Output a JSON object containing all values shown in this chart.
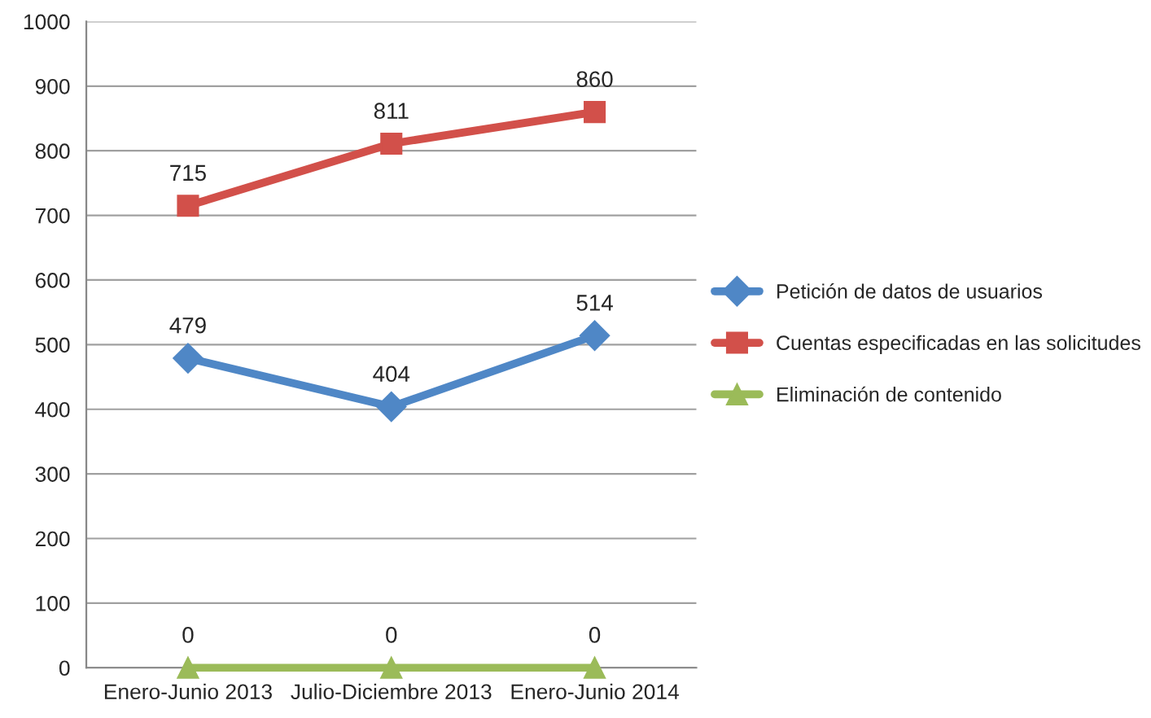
{
  "chart_data": {
    "type": "line",
    "categories": [
      "Enero-Junio 2013",
      "Julio-Diciembre 2013",
      "Enero-Junio 2014"
    ],
    "series": [
      {
        "name": "Petición de datos de usuarios",
        "color": "#4f87c6",
        "values": [
          479,
          404,
          514
        ],
        "marker": "diamond"
      },
      {
        "name": "Cuentas especificadas en las solicitudes",
        "color": "#d2504a",
        "values": [
          715,
          811,
          860
        ],
        "marker": "square"
      },
      {
        "name": "Eliminación de contenido",
        "color": "#9bbb59",
        "values": [
          0,
          0,
          0
        ],
        "marker": "triangle"
      }
    ],
    "ylim": [
      0,
      1000
    ],
    "yticks": [
      0,
      100,
      200,
      300,
      400,
      500,
      600,
      700,
      800,
      900,
      1000
    ],
    "grid": "y",
    "legend": "right",
    "data_labels": true,
    "line_style": "solid"
  }
}
